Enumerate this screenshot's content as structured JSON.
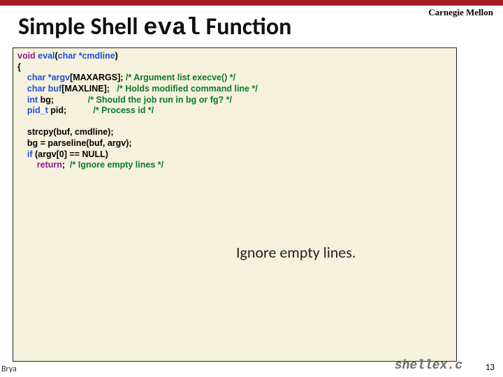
{
  "branding": "Carnegie Mellon",
  "title_pre": "Simple Shell ",
  "title_mono": "eval",
  "title_post": " Function",
  "code": {
    "l1_kw": "void",
    "l1_fn": " eval",
    "l1_p1": "(",
    "l1_ty": "char",
    "l1_arg": " *cmdline",
    "l1_p2": ")",
    "l2": "{",
    "l3_ind": "    ",
    "l3_ty": "char",
    "l3_var": " *argv",
    "l3_rest": "[MAXARGS]; ",
    "l3_cmt": "/* Argument list execve() */",
    "l4_ind": "    ",
    "l4_ty": "char",
    "l4_var": " buf",
    "l4_rest": "[MAXLINE];   ",
    "l4_cmt": "/* Holds modified command line */",
    "l5_ind": "    ",
    "l5_ty": "int",
    "l5_var": " bg;",
    "l5_pad": "              ",
    "l5_cmt": "/* Should the job run in bg or fg? */",
    "l6_ind": "    ",
    "l6_ty": "pid_t",
    "l6_var": " pid;",
    "l6_pad": "           ",
    "l6_cmt": "/* Process id */",
    "l7": "",
    "l8": "    strcpy(buf, cmdline);",
    "l9": "    bg = parseline(buf, argv);",
    "l10_ind": "    ",
    "l10_kw": "if",
    "l10_rest": " (argv[0] == NULL)",
    "l11_ind": "        ",
    "l11_kw": "return",
    "l11_rest": ";  ",
    "l11_cmt": "/* Ignore empty lines */"
  },
  "caption": "Ignore empty lines.",
  "srcfile": "shellex.c",
  "pagenum": "13",
  "footleft": "Brya"
}
